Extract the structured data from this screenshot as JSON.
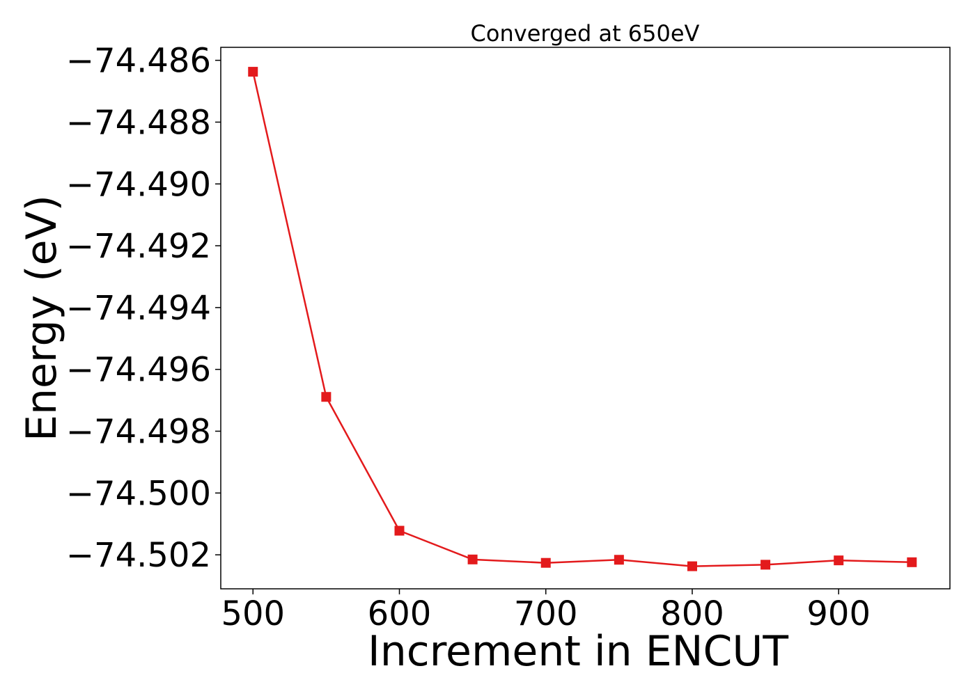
{
  "chart_data": {
    "type": "line",
    "title": "Converged at 650eV",
    "xlabel": "Increment in ENCUT",
    "ylabel": "Energy (eV)",
    "xlim": [
      478,
      976
    ],
    "ylim": [
      -74.5031,
      -74.48558
    ],
    "x_ticks": [
      500,
      600,
      700,
      800,
      900
    ],
    "x_tick_labels": [
      "500",
      "600",
      "700",
      "800",
      "900"
    ],
    "y_ticks": [
      -74.486,
      -74.488,
      -74.49,
      -74.492,
      -74.494,
      -74.496,
      -74.498,
      -74.5,
      -74.502
    ],
    "y_tick_labels": [
      "−74.486",
      "−74.488",
      "−74.490",
      "−74.492",
      "−74.494",
      "−74.496",
      "−74.498",
      "−74.500",
      "−74.502"
    ],
    "grid": false,
    "series": [
      {
        "color": "#e31a1c",
        "marker": "square",
        "x": [
          500,
          550,
          600,
          650,
          700,
          750,
          800,
          850,
          900,
          950
        ],
        "y": [
          -74.48637,
          -74.49689,
          -74.50122,
          -74.50215,
          -74.50226,
          -74.50216,
          -74.50237,
          -74.50232,
          -74.50218,
          -74.50224
        ]
      }
    ]
  }
}
